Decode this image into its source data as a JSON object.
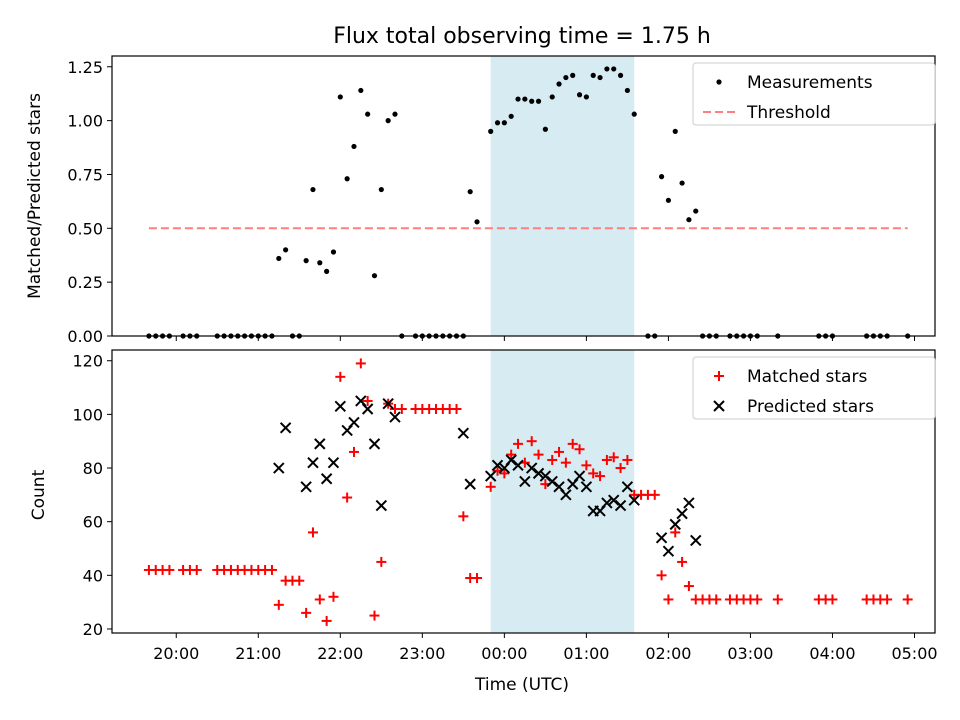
{
  "chart_data": [
    {
      "type": "scatter",
      "title": "Flux total observing time = 1.75 h",
      "xlabel": "",
      "ylabel": "Matched/Predicted stars",
      "ylim": [
        0,
        1.3
      ],
      "xlim": [
        "19:13",
        "05:15"
      ],
      "ytick_labels": [
        "0.00",
        "0.25",
        "0.50",
        "0.75",
        "1.00",
        "1.25"
      ],
      "yticks": [
        0,
        0.25,
        0.5,
        0.75,
        1.0,
        1.25
      ],
      "shaded_interval": [
        "23:50",
        "01:35"
      ],
      "legend_position": "top-right",
      "series": [
        {
          "name": "Measurements",
          "marker": "dot",
          "color": "#000000",
          "points": [
            [
              "19:40",
              0
            ],
            [
              "19:45",
              0
            ],
            [
              "19:50",
              0
            ],
            [
              "19:55",
              0
            ],
            [
              "20:05",
              0
            ],
            [
              "20:10",
              0
            ],
            [
              "20:15",
              0
            ],
            [
              "20:30",
              0
            ],
            [
              "20:35",
              0
            ],
            [
              "20:40",
              0
            ],
            [
              "20:45",
              0
            ],
            [
              "20:50",
              0
            ],
            [
              "20:55",
              0
            ],
            [
              "21:00",
              0
            ],
            [
              "21:05",
              0
            ],
            [
              "21:10",
              0
            ],
            [
              "21:15",
              0.36
            ],
            [
              "21:20",
              0.4
            ],
            [
              "21:25",
              0
            ],
            [
              "21:30",
              0
            ],
            [
              "21:35",
              0.35
            ],
            [
              "21:40",
              0.68
            ],
            [
              "21:45",
              0.34
            ],
            [
              "21:50",
              0.3
            ],
            [
              "21:55",
              0.39
            ],
            [
              "22:00",
              1.11
            ],
            [
              "22:05",
              0.73
            ],
            [
              "22:10",
              0.88
            ],
            [
              "22:15",
              1.14
            ],
            [
              "22:20",
              1.03
            ],
            [
              "22:25",
              0.28
            ],
            [
              "22:30",
              0.68
            ],
            [
              "22:35",
              1.0
            ],
            [
              "22:40",
              1.03
            ],
            [
              "22:45",
              0
            ],
            [
              "22:55",
              0
            ],
            [
              "23:00",
              0
            ],
            [
              "23:05",
              0
            ],
            [
              "23:10",
              0
            ],
            [
              "23:15",
              0
            ],
            [
              "23:20",
              0
            ],
            [
              "23:25",
              0
            ],
            [
              "23:30",
              0
            ],
            [
              "23:35",
              0.67
            ],
            [
              "23:40",
              0.53
            ],
            [
              "23:50",
              0.95
            ],
            [
              "23:55",
              0.99
            ],
            [
              "00:00",
              0.99
            ],
            [
              "00:05",
              1.02
            ],
            [
              "00:10",
              1.1
            ],
            [
              "00:15",
              1.1
            ],
            [
              "00:20",
              1.09
            ],
            [
              "00:25",
              1.09
            ],
            [
              "00:30",
              0.96
            ],
            [
              "00:35",
              1.11
            ],
            [
              "00:40",
              1.17
            ],
            [
              "00:45",
              1.2
            ],
            [
              "00:50",
              1.21
            ],
            [
              "00:55",
              1.12
            ],
            [
              "01:00",
              1.11
            ],
            [
              "01:05",
              1.21
            ],
            [
              "01:10",
              1.2
            ],
            [
              "01:15",
              1.24
            ],
            [
              "01:20",
              1.24
            ],
            [
              "01:25",
              1.21
            ],
            [
              "01:30",
              1.14
            ],
            [
              "01:35",
              1.03
            ],
            [
              "01:45",
              0
            ],
            [
              "01:50",
              0
            ],
            [
              "01:55",
              0.74
            ],
            [
              "02:00",
              0.63
            ],
            [
              "02:05",
              0.95
            ],
            [
              "02:10",
              0.71
            ],
            [
              "02:15",
              0.54
            ],
            [
              "02:20",
              0.58
            ],
            [
              "02:25",
              0
            ],
            [
              "02:30",
              0
            ],
            [
              "02:35",
              0
            ],
            [
              "02:45",
              0
            ],
            [
              "02:50",
              0
            ],
            [
              "02:55",
              0
            ],
            [
              "03:00",
              0
            ],
            [
              "03:05",
              0
            ],
            [
              "03:20",
              0
            ],
            [
              "03:50",
              0
            ],
            [
              "03:55",
              0
            ],
            [
              "04:00",
              0
            ],
            [
              "04:25",
              0
            ],
            [
              "04:30",
              0
            ],
            [
              "04:35",
              0
            ],
            [
              "04:40",
              0
            ],
            [
              "04:55",
              0
            ]
          ]
        },
        {
          "name": "Threshold",
          "marker": "dashed-line",
          "color": "#ff7f7f",
          "points": [
            [
              "19:40",
              0.5
            ],
            [
              "04:55",
              0.5
            ]
          ]
        }
      ]
    },
    {
      "type": "scatter",
      "title": "",
      "xlabel": "Time (UTC)",
      "ylabel": "Count",
      "ylim": [
        18.5,
        124
      ],
      "xlim": [
        "19:13",
        "05:15"
      ],
      "ytick_labels": [
        "20",
        "40",
        "60",
        "80",
        "100",
        "120"
      ],
      "yticks": [
        20,
        40,
        60,
        80,
        100,
        120
      ],
      "xtick_labels": [
        "20:00",
        "21:00",
        "22:00",
        "23:00",
        "00:00",
        "01:00",
        "02:00",
        "03:00",
        "04:00",
        "05:00"
      ],
      "xticks": [
        "20:00",
        "21:00",
        "22:00",
        "23:00",
        "00:00",
        "01:00",
        "02:00",
        "03:00",
        "04:00",
        "05:00"
      ],
      "shaded_interval": [
        "23:50",
        "01:35"
      ],
      "legend_position": "top-right",
      "series": [
        {
          "name": "Matched stars",
          "marker": "plus",
          "color": "#ff0000",
          "points": [
            [
              "19:40",
              42
            ],
            [
              "19:45",
              42
            ],
            [
              "19:50",
              42
            ],
            [
              "19:55",
              42
            ],
            [
              "20:05",
              42
            ],
            [
              "20:10",
              42
            ],
            [
              "20:15",
              42
            ],
            [
              "20:30",
              42
            ],
            [
              "20:35",
              42
            ],
            [
              "20:40",
              42
            ],
            [
              "20:45",
              42
            ],
            [
              "20:50",
              42
            ],
            [
              "20:55",
              42
            ],
            [
              "21:00",
              42
            ],
            [
              "21:05",
              42
            ],
            [
              "21:10",
              42
            ],
            [
              "21:15",
              29
            ],
            [
              "21:20",
              38
            ],
            [
              "21:25",
              38
            ],
            [
              "21:30",
              38
            ],
            [
              "21:35",
              26
            ],
            [
              "21:40",
              56
            ],
            [
              "21:45",
              31
            ],
            [
              "21:50",
              23
            ],
            [
              "21:55",
              32
            ],
            [
              "22:00",
              114
            ],
            [
              "22:05",
              69
            ],
            [
              "22:10",
              86
            ],
            [
              "22:15",
              119
            ],
            [
              "22:20",
              105
            ],
            [
              "22:25",
              25
            ],
            [
              "22:30",
              45
            ],
            [
              "22:35",
              104
            ],
            [
              "22:40",
              102
            ],
            [
              "22:45",
              102
            ],
            [
              "22:55",
              102
            ],
            [
              "23:00",
              102
            ],
            [
              "23:05",
              102
            ],
            [
              "23:10",
              102
            ],
            [
              "23:15",
              102
            ],
            [
              "23:20",
              102
            ],
            [
              "23:25",
              102
            ],
            [
              "23:30",
              62
            ],
            [
              "23:35",
              39
            ],
            [
              "23:40",
              39
            ],
            [
              "23:50",
              73
            ],
            [
              "23:55",
              79
            ],
            [
              "00:00",
              78
            ],
            [
              "00:05",
              85
            ],
            [
              "00:10",
              89
            ],
            [
              "00:15",
              82
            ],
            [
              "00:20",
              90
            ],
            [
              "00:25",
              85
            ],
            [
              "00:30",
              74
            ],
            [
              "00:35",
              83
            ],
            [
              "00:40",
              86
            ],
            [
              "00:45",
              82
            ],
            [
              "00:50",
              89
            ],
            [
              "00:55",
              87
            ],
            [
              "01:00",
              81
            ],
            [
              "01:05",
              78
            ],
            [
              "01:10",
              77
            ],
            [
              "01:15",
              83
            ],
            [
              "01:20",
              84
            ],
            [
              "01:25",
              80
            ],
            [
              "01:30",
              83
            ],
            [
              "01:35",
              70
            ],
            [
              "01:40",
              70
            ],
            [
              "01:45",
              70
            ],
            [
              "01:50",
              70
            ],
            [
              "01:55",
              40
            ],
            [
              "02:00",
              31
            ],
            [
              "02:05",
              56
            ],
            [
              "02:10",
              45
            ],
            [
              "02:15",
              36
            ],
            [
              "02:20",
              31
            ],
            [
              "02:25",
              31
            ],
            [
              "02:30",
              31
            ],
            [
              "02:35",
              31
            ],
            [
              "02:45",
              31
            ],
            [
              "02:50",
              31
            ],
            [
              "02:55",
              31
            ],
            [
              "03:00",
              31
            ],
            [
              "03:05",
              31
            ],
            [
              "03:20",
              31
            ],
            [
              "03:50",
              31
            ],
            [
              "03:55",
              31
            ],
            [
              "04:00",
              31
            ],
            [
              "04:25",
              31
            ],
            [
              "04:30",
              31
            ],
            [
              "04:35",
              31
            ],
            [
              "04:40",
              31
            ],
            [
              "04:55",
              31
            ]
          ]
        },
        {
          "name": "Predicted stars",
          "marker": "x",
          "color": "#000000",
          "points": [
            [
              "21:15",
              80
            ],
            [
              "21:20",
              95
            ],
            [
              "21:35",
              73
            ],
            [
              "21:40",
              82
            ],
            [
              "21:45",
              89
            ],
            [
              "21:50",
              76
            ],
            [
              "21:55",
              82
            ],
            [
              "22:00",
              103
            ],
            [
              "22:05",
              94
            ],
            [
              "22:10",
              97
            ],
            [
              "22:15",
              105
            ],
            [
              "22:20",
              102
            ],
            [
              "22:25",
              89
            ],
            [
              "22:30",
              66
            ],
            [
              "22:35",
              104
            ],
            [
              "22:40",
              99
            ],
            [
              "23:30",
              93
            ],
            [
              "23:35",
              74
            ],
            [
              "23:50",
              77
            ],
            [
              "23:55",
              81
            ],
            [
              "00:00",
              80
            ],
            [
              "00:05",
              83
            ],
            [
              "00:10",
              81
            ],
            [
              "00:15",
              75
            ],
            [
              "00:20",
              80
            ],
            [
              "00:25",
              78
            ],
            [
              "00:30",
              77
            ],
            [
              "00:35",
              75
            ],
            [
              "00:40",
              73
            ],
            [
              "00:45",
              70
            ],
            [
              "00:50",
              74
            ],
            [
              "00:55",
              77
            ],
            [
              "01:00",
              73
            ],
            [
              "01:05",
              64
            ],
            [
              "01:10",
              64
            ],
            [
              "01:15",
              67
            ],
            [
              "01:20",
              68
            ],
            [
              "01:25",
              66
            ],
            [
              "01:30",
              73
            ],
            [
              "01:35",
              68
            ],
            [
              "01:55",
              54
            ],
            [
              "02:00",
              49
            ],
            [
              "02:05",
              59
            ],
            [
              "02:10",
              63
            ],
            [
              "02:15",
              67
            ],
            [
              "02:20",
              53
            ]
          ]
        }
      ]
    }
  ]
}
